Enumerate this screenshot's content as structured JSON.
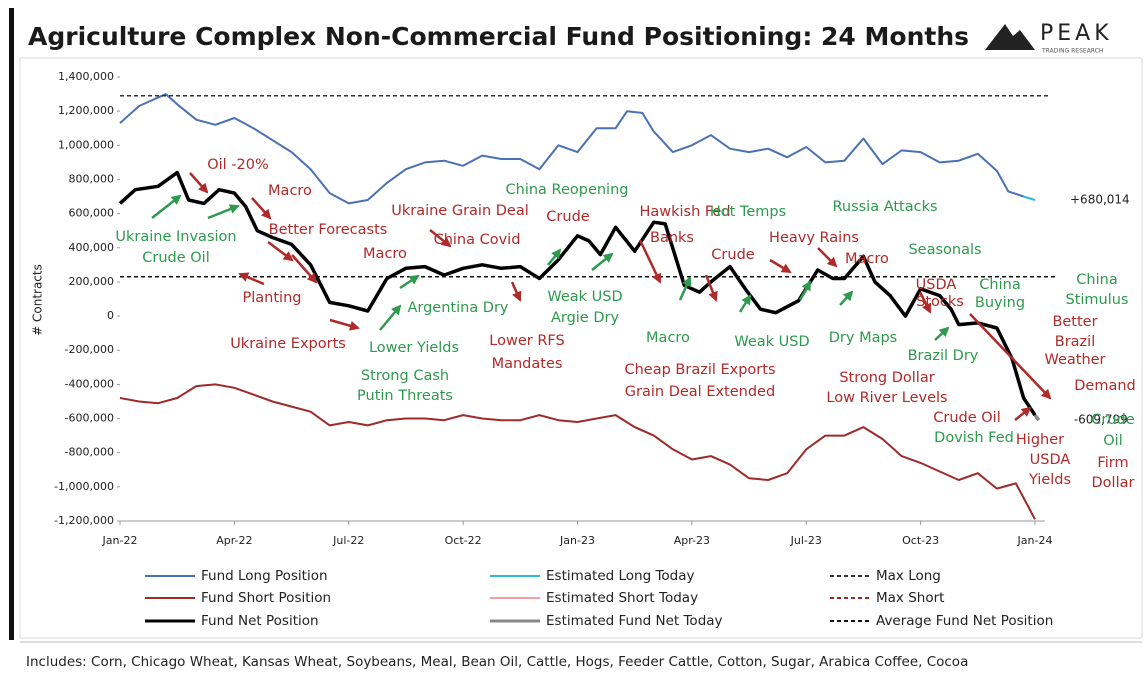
{
  "chart_data": {
    "type": "line",
    "title": "Agriculture Complex Non-Commercial Fund Positioning: 24 Months",
    "logo": "PEAK",
    "logo_subtitle": "TRADING RESEARCH",
    "y_label": "# Contracts",
    "footnote": "Includes: Corn, Chicago Wheat, Kansas Wheat, Soybeans, Meal, Bean Oil, Cattle, Hogs, Feeder Cattle, Cotton, Sugar, Arabica Coffee, Cocoa",
    "xlim": [
      0,
      24
    ],
    "xticks": [
      {
        "value": 0,
        "label": "Jan-22"
      },
      {
        "value": 3,
        "label": "Apr-22"
      },
      {
        "value": 6,
        "label": "Jul-22"
      },
      {
        "value": 9,
        "label": "Oct-22"
      },
      {
        "value": 12,
        "label": "Jan-23"
      },
      {
        "value": 15,
        "label": "Apr-23"
      },
      {
        "value": 18,
        "label": "Jul-23"
      },
      {
        "value": 21,
        "label": "Oct-23"
      },
      {
        "value": 24,
        "label": "Jan-24"
      }
    ],
    "ylim": [
      -1200000,
      1400000
    ],
    "yticks": [
      {
        "value": -1200000,
        "label": "-1,200,000"
      },
      {
        "value": -1000000,
        "label": "-1,000,000"
      },
      {
        "value": -800000,
        "label": "-800,000"
      },
      {
        "value": -600000,
        "label": "-600,000"
      },
      {
        "value": -400000,
        "label": "-400,000"
      },
      {
        "value": -200000,
        "label": "-200,000"
      },
      0,
      {
        "value": 200000,
        "label": "200,000"
      },
      {
        "value": 400000,
        "label": "400,000"
      },
      {
        "value": 600000,
        "label": "600,000"
      },
      {
        "value": 800000,
        "label": "800,000"
      },
      {
        "value": 1000000,
        "label": "1,000,000"
      },
      {
        "value": 1200000,
        "label": "1,200,000"
      },
      {
        "value": 1400000,
        "label": "1,400,000"
      }
    ],
    "series": [
      {
        "name": "Fund Long Position",
        "color": "#4a70b5",
        "width": 2,
        "dash": false,
        "x": [
          0,
          0.5,
          1.2,
          1.5,
          2,
          2.5,
          3,
          3.5,
          4,
          4.5,
          5,
          5.5,
          6,
          6.5,
          7,
          7.5,
          8,
          8.5,
          9,
          9.5,
          10,
          10.5,
          11,
          11.5,
          12,
          12.5,
          13,
          13.3,
          13.7,
          14,
          14.5,
          15,
          15.5,
          16,
          16.5,
          17,
          17.5,
          18,
          18.5,
          19,
          19.5,
          20,
          20.5,
          21,
          21.5,
          22,
          22.5,
          23,
          23.3,
          23.7
        ],
        "values": [
          1130000,
          1230000,
          1300000,
          1240000,
          1150000,
          1120000,
          1160000,
          1100000,
          1030000,
          960000,
          860000,
          720000,
          660000,
          680000,
          780000,
          860000,
          900000,
          910000,
          880000,
          940000,
          920000,
          920000,
          860000,
          1000000,
          960000,
          1100000,
          1100000,
          1200000,
          1190000,
          1080000,
          960000,
          1000000,
          1060000,
          980000,
          960000,
          980000,
          930000,
          990000,
          900000,
          910000,
          1040000,
          890000,
          970000,
          960000,
          900000,
          910000,
          950000,
          850000,
          730000,
          700000
        ]
      },
      {
        "name": "Fund Short Position",
        "color": "#9e2a2a",
        "width": 2,
        "dash": false,
        "x": [
          0,
          0.5,
          1,
          1.5,
          2,
          2.5,
          3,
          3.5,
          4,
          4.5,
          5,
          5.5,
          6,
          6.5,
          7,
          7.5,
          8,
          8.5,
          9,
          9.5,
          10,
          10.5,
          11,
          11.5,
          12,
          12.5,
          13,
          13.5,
          14,
          14.5,
          15,
          15.5,
          16,
          16.5,
          17,
          17.5,
          18,
          18.5,
          19,
          19.5,
          20,
          20.5,
          21,
          21.5,
          22,
          22.5,
          23,
          23.5,
          24
        ],
        "values": [
          -480000,
          -500000,
          -510000,
          -480000,
          -410000,
          -400000,
          -420000,
          -460000,
          -500000,
          -530000,
          -560000,
          -640000,
          -620000,
          -640000,
          -610000,
          -600000,
          -600000,
          -610000,
          -580000,
          -600000,
          -610000,
          -610000,
          -580000,
          -610000,
          -620000,
          -600000,
          -580000,
          -650000,
          -700000,
          -780000,
          -840000,
          -820000,
          -870000,
          -950000,
          -960000,
          -920000,
          -780000,
          -700000,
          -700000,
          -650000,
          -720000,
          -820000,
          -860000,
          -910000,
          -960000,
          -920000,
          -1010000,
          -980000,
          -1190000
        ]
      },
      {
        "name": "Fund Net Position",
        "color": "#000000",
        "width": 3.5,
        "dash": false,
        "x": [
          0,
          0.4,
          1,
          1.5,
          1.8,
          2.2,
          2.6,
          3,
          3.3,
          3.6,
          4,
          4.5,
          5,
          5.5,
          6,
          6.5,
          7,
          7.5,
          8,
          8.5,
          9,
          9.5,
          10,
          10.5,
          11,
          11.5,
          12,
          12.3,
          12.6,
          13,
          13.5,
          14,
          14.3,
          14.8,
          15.2,
          15.5,
          16,
          16.4,
          16.8,
          17.2,
          17.8,
          18.3,
          18.7,
          19,
          19.5,
          19.8,
          20.2,
          20.6,
          21,
          21.5,
          21.8,
          22,
          22.5,
          23,
          23.4,
          23.7,
          24
        ],
        "values": [
          660000,
          740000,
          760000,
          840000,
          680000,
          660000,
          740000,
          720000,
          640000,
          500000,
          460000,
          420000,
          300000,
          80000,
          60000,
          30000,
          220000,
          280000,
          290000,
          240000,
          280000,
          300000,
          280000,
          290000,
          220000,
          330000,
          470000,
          440000,
          360000,
          520000,
          380000,
          550000,
          540000,
          180000,
          140000,
          200000,
          290000,
          160000,
          40000,
          20000,
          90000,
          270000,
          220000,
          220000,
          350000,
          200000,
          120000,
          0,
          160000,
          120000,
          40000,
          -50000,
          -40000,
          -70000,
          -250000,
          -480000,
          -580000
        ]
      },
      {
        "name": "Estimated Long Today",
        "color": "#2fb7d6",
        "width": 2,
        "dash": false,
        "x": [
          23.7,
          24
        ],
        "values": [
          700000,
          680014
        ],
        "value_labels": [
          null,
          "+680,014"
        ]
      },
      {
        "name": "Estimated Short Today",
        "color": "#f0a0a0",
        "width": 2,
        "dash": false,
        "x": [
          24,
          24.1
        ],
        "values": [
          null,
          null
        ]
      },
      {
        "name": "Estimated Fund Net Today",
        "color": "#888888",
        "width": 3.5,
        "dash": false,
        "x": [
          24,
          24.1
        ],
        "values": [
          -580000,
          -609799
        ],
        "value_labels": [
          null,
          "-609,799"
        ]
      },
      {
        "name": "Max Long",
        "color": "#333333",
        "width": 1.5,
        "dash": true,
        "x": [
          0,
          24.4
        ],
        "values": [
          1290000,
          1290000
        ]
      },
      {
        "name": "Max Short",
        "color": "#9e2a2a",
        "width": 1.5,
        "dash": true,
        "x": [
          0,
          24.4
        ],
        "values": [
          null,
          null
        ]
      },
      {
        "name": "Average Fund Net Position",
        "color": "#111111",
        "width": 1.5,
        "dash": true,
        "x": [
          0,
          24.6
        ],
        "values": [
          230000,
          230000
        ]
      }
    ],
    "annotations": [
      {
        "text": "Ukraine Invasion",
        "color": "#2e9a4e"
      },
      {
        "text": "Crude Oil",
        "color": "#2e9a4e"
      },
      {
        "text": "Oil -20%",
        "color": "#b02a2a"
      },
      {
        "text": "Macro",
        "color": "#b02a2a"
      },
      {
        "text": "Better Forecasts",
        "color": "#b02a2a"
      },
      {
        "text": "Macro",
        "color": "#b02a2a"
      },
      {
        "text": "Planting",
        "color": "#b02a2a"
      },
      {
        "text": "Ukraine Exports",
        "color": "#b02a2a"
      },
      {
        "text": "Lower Yields",
        "color": "#2e9a4e"
      },
      {
        "text": "Strong Cash",
        "color": "#2e9a4e"
      },
      {
        "text": "Putin Threats",
        "color": "#2e9a4e"
      },
      {
        "text": "Argentina Dry",
        "color": "#2e9a4e"
      },
      {
        "text": "Ukraine Grain Deal",
        "color": "#b02a2a"
      },
      {
        "text": "China Covid",
        "color": "#b02a2a"
      },
      {
        "text": "Lower RFS",
        "color": "#b02a2a"
      },
      {
        "text": "Mandates",
        "color": "#b02a2a"
      },
      {
        "text": "China Reopening",
        "color": "#2e9a4e"
      },
      {
        "text": "Crude",
        "color": "#b02a2a"
      },
      {
        "text": "Weak USD",
        "color": "#2e9a4e"
      },
      {
        "text": "Argie Dry",
        "color": "#2e9a4e"
      },
      {
        "text": "Hawkish Fed",
        "color": "#b02a2a"
      },
      {
        "text": "Banks",
        "color": "#b02a2a"
      },
      {
        "text": "Macro",
        "color": "#2e9a4e"
      },
      {
        "text": "Cheap Brazil Exports",
        "color": "#b02a2a"
      },
      {
        "text": "Grain Deal Extended",
        "color": "#b02a2a"
      },
      {
        "text": "Crude",
        "color": "#b02a2a"
      },
      {
        "text": "Hot Temps",
        "color": "#2e9a4e"
      },
      {
        "text": "Weak USD",
        "color": "#2e9a4e"
      },
      {
        "text": "Heavy Rains",
        "color": "#b02a2a"
      },
      {
        "text": "Macro",
        "color": "#b02a2a"
      },
      {
        "text": "Russia Attacks",
        "color": "#2e9a4e"
      },
      {
        "text": "Dry Maps",
        "color": "#2e9a4e"
      },
      {
        "text": "Seasonals",
        "color": "#2e9a4e"
      },
      {
        "text": "USDA",
        "color": "#b02a2a"
      },
      {
        "text": "Stocks",
        "color": "#b02a2a"
      },
      {
        "text": "China",
        "color": "#2e9a4e"
      },
      {
        "text": "Buying",
        "color": "#2e9a4e"
      },
      {
        "text": "Brazil Dry",
        "color": "#2e9a4e"
      },
      {
        "text": "Strong Dollar",
        "color": "#b02a2a"
      },
      {
        "text": "Low River Levels",
        "color": "#b02a2a"
      },
      {
        "text": "Crude Oil",
        "color": "#b02a2a"
      },
      {
        "text": "Dovish Fed",
        "color": "#2e9a4e"
      },
      {
        "text": "Better",
        "color": "#b02a2a"
      },
      {
        "text": "Brazil",
        "color": "#b02a2a"
      },
      {
        "text": "Weather",
        "color": "#b02a2a"
      },
      {
        "text": "Demand",
        "color": "#b02a2a"
      },
      {
        "text": "Higher",
        "color": "#b02a2a"
      },
      {
        "text": "USDA",
        "color": "#b02a2a"
      },
      {
        "text": "Yields",
        "color": "#b02a2a"
      },
      {
        "text": "China",
        "color": "#2e9a4e"
      },
      {
        "text": "Stimulus",
        "color": "#2e9a4e"
      },
      {
        "text": "Crude",
        "color": "#2e9a4e"
      },
      {
        "text": "Oil",
        "color": "#2e9a4e"
      },
      {
        "text": "Firm",
        "color": "#b02a2a"
      },
      {
        "text": "Dollar",
        "color": "#b02a2a"
      }
    ]
  }
}
